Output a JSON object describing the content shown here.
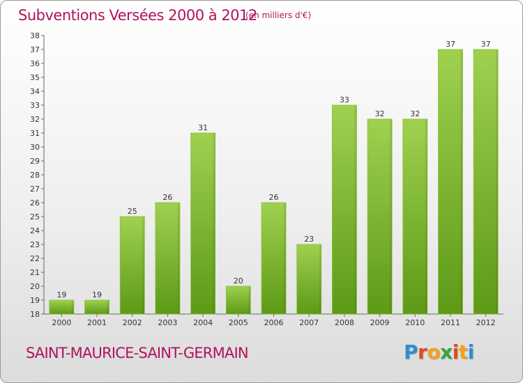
{
  "header": {
    "title": "Subventions Versées 2000 à 2012",
    "subtitle": "(en milliers d'€)"
  },
  "footer": {
    "commune": "SAINT-MAURICE-SAINT-GERMAIN",
    "logo": {
      "letters": [
        "P",
        "r",
        "o",
        "x",
        "i",
        "t",
        "i"
      ],
      "colors": [
        "#2a8fd0",
        "#e04a1f",
        "#f4a11a",
        "#3aa43c",
        "#e04a1f",
        "#f4a11a",
        "#2a8fd0"
      ]
    }
  },
  "colors": {
    "accent": "#b0125c",
    "bar_top": "#9fd14f",
    "bar_bottom": "#5d9a17"
  },
  "chart_data": {
    "type": "bar",
    "title": "Subventions Versées 2000 à 2012",
    "subtitle": "(en milliers d'€)",
    "categories": [
      "2000",
      "2001",
      "2002",
      "2003",
      "2004",
      "2005",
      "2006",
      "2007",
      "2008",
      "2009",
      "2010",
      "2011",
      "2012"
    ],
    "values": [
      19,
      19,
      25,
      26,
      31,
      20,
      26,
      23,
      33,
      32,
      32,
      37,
      37
    ],
    "ylim": [
      18,
      38
    ],
    "yticks": [
      18,
      19,
      20,
      21,
      22,
      23,
      24,
      25,
      26,
      27,
      28,
      29,
      30,
      31,
      32,
      33,
      34,
      35,
      36,
      37,
      38
    ],
    "grid": false,
    "data_labels": true
  }
}
